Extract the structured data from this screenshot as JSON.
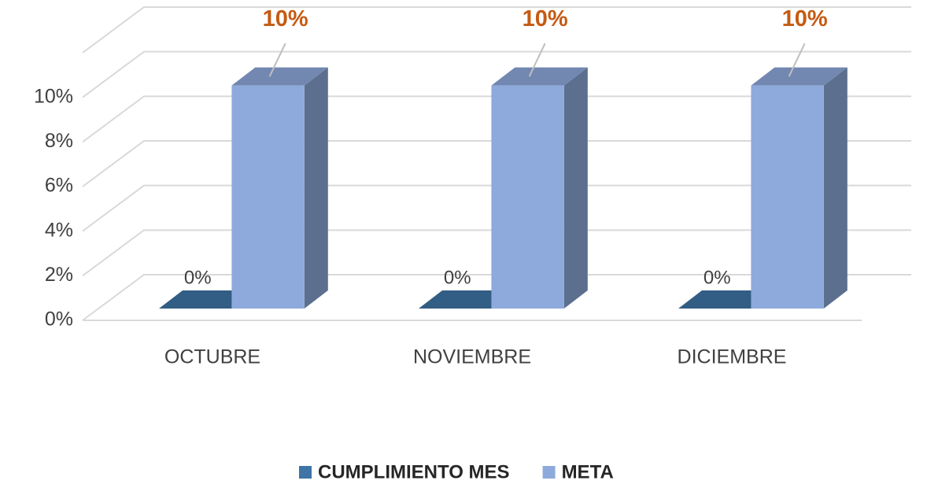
{
  "chart_data": {
    "type": "bar3d",
    "categories": [
      "OCTUBRE",
      "NOVIEMBRE",
      "DICIEMBRE"
    ],
    "series": [
      {
        "name": "CUMPLIMIENTO MES",
        "color": "#3e74a6",
        "values": [
          0,
          0,
          0
        ],
        "value_labels": [
          "0%",
          "0%",
          "0%"
        ]
      },
      {
        "name": "META",
        "color": "#8eaadc",
        "values": [
          10,
          10,
          10
        ],
        "value_labels": [
          "10%",
          "10%",
          "10%"
        ]
      }
    ],
    "ylim": [
      0,
      12
    ],
    "yticks": [
      {
        "value": 0,
        "label": "0%"
      },
      {
        "value": 2,
        "label": "2%"
      },
      {
        "value": 4,
        "label": "4%"
      },
      {
        "value": 6,
        "label": "6%"
      },
      {
        "value": 8,
        "label": "8%"
      },
      {
        "value": 10,
        "label": "10%"
      }
    ],
    "grid": true,
    "legend": "bottom"
  }
}
